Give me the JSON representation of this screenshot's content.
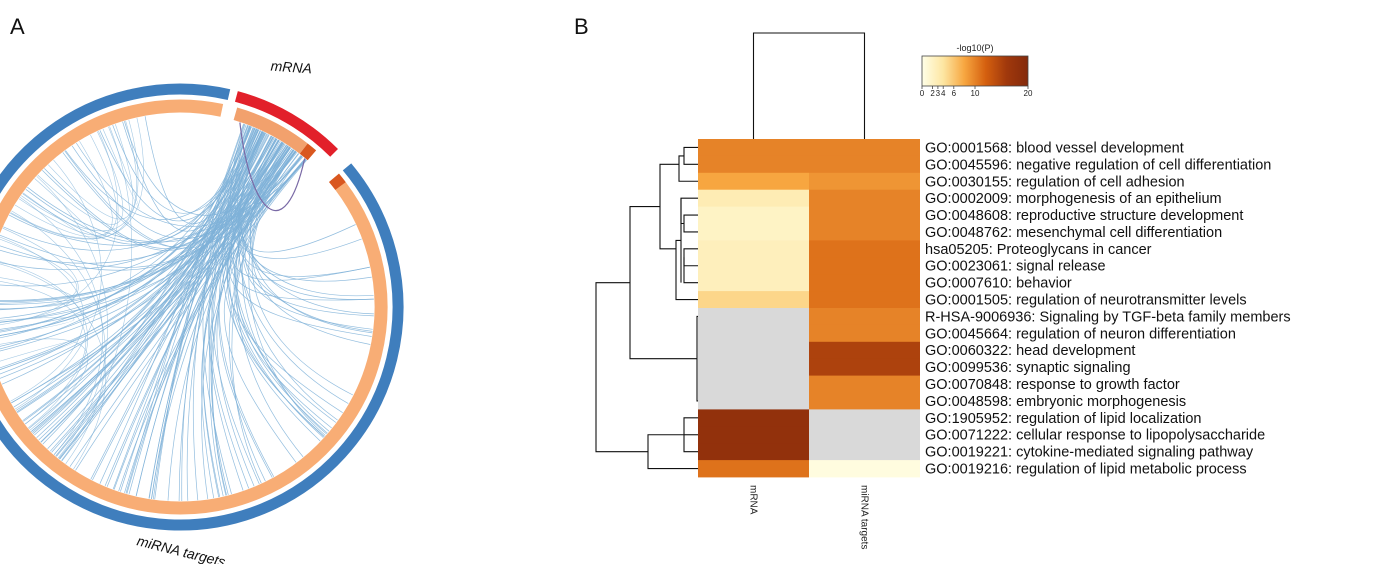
{
  "panels": [
    {
      "letter": "A"
    },
    {
      "letter": "B"
    }
  ],
  "chart_data": [
    {
      "type": "chord",
      "segments": [
        {
          "label": "mRNA",
          "outer_color": "#e2202a",
          "inner_color": "#f2a16d"
        },
        {
          "label": "miRNA targets",
          "outer_color": "#3f7ebd",
          "inner_color": "#f8ad75"
        }
      ],
      "link_color": "#7fb2d8",
      "self_link_color": "#7a6aa6"
    },
    {
      "type": "heatmap",
      "color_scale": {
        "label": "-log10(P)",
        "ticks": [
          "0",
          "2",
          "3",
          "4",
          "6",
          "10",
          "20"
        ],
        "tick_values": [
          0,
          2,
          3,
          4,
          6,
          10,
          20
        ],
        "min": 0,
        "max": 20,
        "colors": [
          "#ffffe8",
          "#fde6a2",
          "#f7a640",
          "#d5600f",
          "#a0380c",
          "#842a0c"
        ],
        "missing_color": "#d9d9d9"
      },
      "columns": [
        "mRNA",
        "miRNA targets"
      ],
      "rows": [
        {
          "term": "GO:0001568: blood vessel development",
          "values": [
            10,
            10
          ]
        },
        {
          "term": "GO:0045596: negative regulation of cell differentiation",
          "values": [
            10,
            10
          ]
        },
        {
          "term": "GO:0030155: regulation of cell adhesion",
          "values": [
            8,
            9
          ]
        },
        {
          "term": "GO:0002009: morphogenesis of an epithelium",
          "values": [
            3,
            10
          ]
        },
        {
          "term": "GO:0048608: reproductive structure development",
          "values": [
            2,
            10
          ]
        },
        {
          "term": "GO:0048762: mesenchymal cell differentiation",
          "values": [
            2,
            10
          ]
        },
        {
          "term": "hsa05205: Proteoglycans in cancer",
          "values": [
            2.5,
            11
          ]
        },
        {
          "term": "GO:0023061: signal release",
          "values": [
            2.5,
            11
          ]
        },
        {
          "term": "GO:0007610: behavior",
          "values": [
            2.5,
            11
          ]
        },
        {
          "term": "GO:0001505: regulation of neurotransmitter levels",
          "values": [
            5,
            11
          ]
        },
        {
          "term": "R-HSA-9006936: Signaling by TGF-beta family members",
          "values": [
            null,
            10
          ]
        },
        {
          "term": "GO:0045664: regulation of neuron differentiation",
          "values": [
            null,
            10
          ]
        },
        {
          "term": "GO:0060322: head development",
          "values": [
            null,
            15
          ]
        },
        {
          "term": "GO:0099536: synaptic signaling",
          "values": [
            null,
            15
          ]
        },
        {
          "term": "GO:0070848: response to growth factor",
          "values": [
            null,
            10
          ]
        },
        {
          "term": "GO:0048598: embryonic morphogenesis",
          "values": [
            null,
            10
          ]
        },
        {
          "term": "GO:1905952: regulation of lipid localization",
          "values": [
            18,
            null
          ]
        },
        {
          "term": "GO:0071222: cellular response to lipopolysaccharide",
          "values": [
            18,
            null
          ]
        },
        {
          "term": "GO:0019221: cytokine-mediated signaling pathway",
          "values": [
            18,
            null
          ]
        },
        {
          "term": "GO:0019216: regulation of lipid metabolic process",
          "values": [
            11,
            0.5
          ]
        }
      ]
    }
  ]
}
